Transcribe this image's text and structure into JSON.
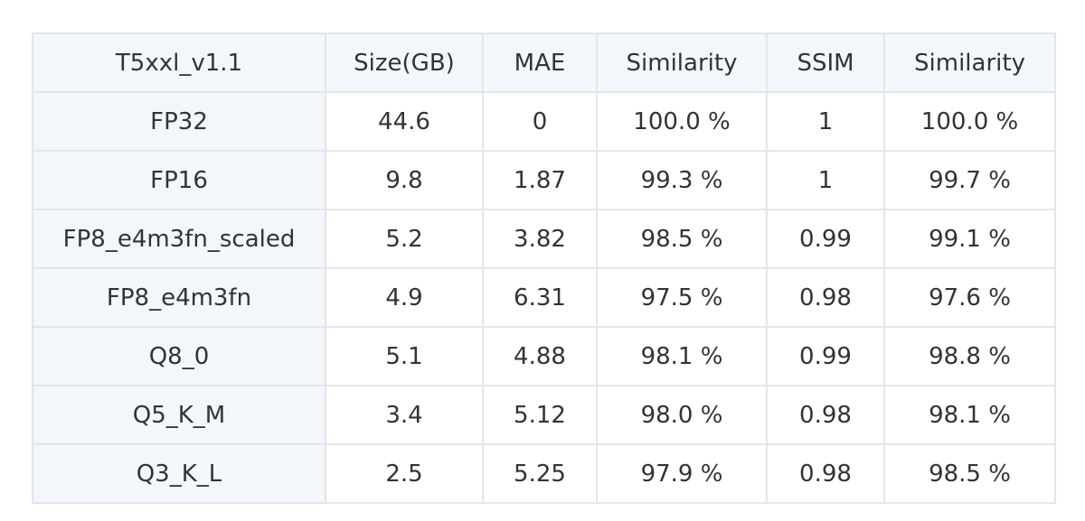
{
  "table": {
    "headers": [
      "T5xxl_v1.1",
      "Size(GB)",
      "MAE",
      "Similarity",
      "SSIM",
      "Similarity"
    ],
    "rows": [
      [
        "FP32",
        "44.6",
        "0",
        "100.0 %",
        "1",
        "100.0 %"
      ],
      [
        "FP16",
        "9.8",
        "1.87",
        "99.3 %",
        "1",
        "99.7 %"
      ],
      [
        "FP8_e4m3fn_scaled",
        "5.2",
        "3.82",
        "98.5 %",
        "0.99",
        "99.1 %"
      ],
      [
        "FP8_e4m3fn",
        "4.9",
        "6.31",
        "97.5 %",
        "0.98",
        "97.6 %"
      ],
      [
        "Q8_0",
        "5.1",
        "4.88",
        "98.1 %",
        "0.99",
        "98.8 %"
      ],
      [
        "Q5_K_M",
        "3.4",
        "5.12",
        "98.0 %",
        "0.98",
        "98.1 %"
      ],
      [
        "Q3_K_L",
        "2.5",
        "5.25",
        "97.9 %",
        "0.98",
        "98.5 %"
      ]
    ]
  }
}
